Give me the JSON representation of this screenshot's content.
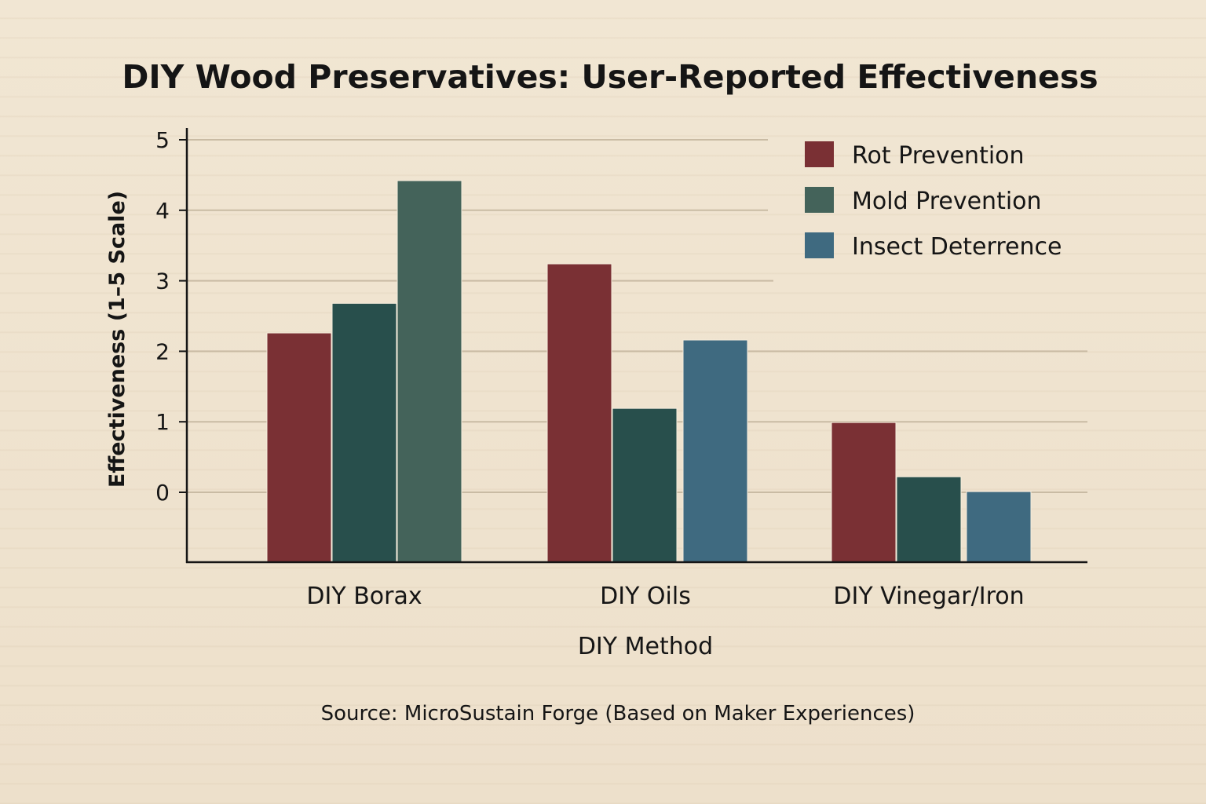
{
  "chart_data": {
    "type": "bar",
    "title": "DIY Wood Preservatives: User-Reported Effectiveness",
    "xlabel": "DIY Method",
    "ylabel": "Effectiveness (1–5 Scale)",
    "source": "Source: MicroSustain Forge (Based on Maker Experiences)",
    "categories": [
      "DIY Borax",
      "DIY Oils",
      "DIY Vinegar/Iron"
    ],
    "yticks": [
      "0",
      "1",
      "2",
      "3",
      "4",
      "5"
    ],
    "ylim": [
      -1,
      5
    ],
    "grid": true,
    "legend_position": "top-right",
    "series": [
      {
        "name": "Rot Prevention",
        "color": "#7a3034",
        "values": [
          2.26,
          3.24,
          0.99
        ],
        "bar_colors": [
          "#7a3034",
          "#7a3034",
          "#7a3034"
        ]
      },
      {
        "name": "Mold Prevention",
        "color": "#44635a",
        "values": [
          2.68,
          1.19,
          0.22
        ],
        "bar_colors": [
          "#284f4c",
          "#284f4c",
          "#284f4c"
        ]
      },
      {
        "name": "Insect Deterrence",
        "color": "#3f6a80",
        "values": [
          4.42,
          2.16,
          0.01
        ],
        "bar_colors": [
          "#44635a",
          "#3f6a80",
          "#3f6a80"
        ]
      }
    ]
  }
}
